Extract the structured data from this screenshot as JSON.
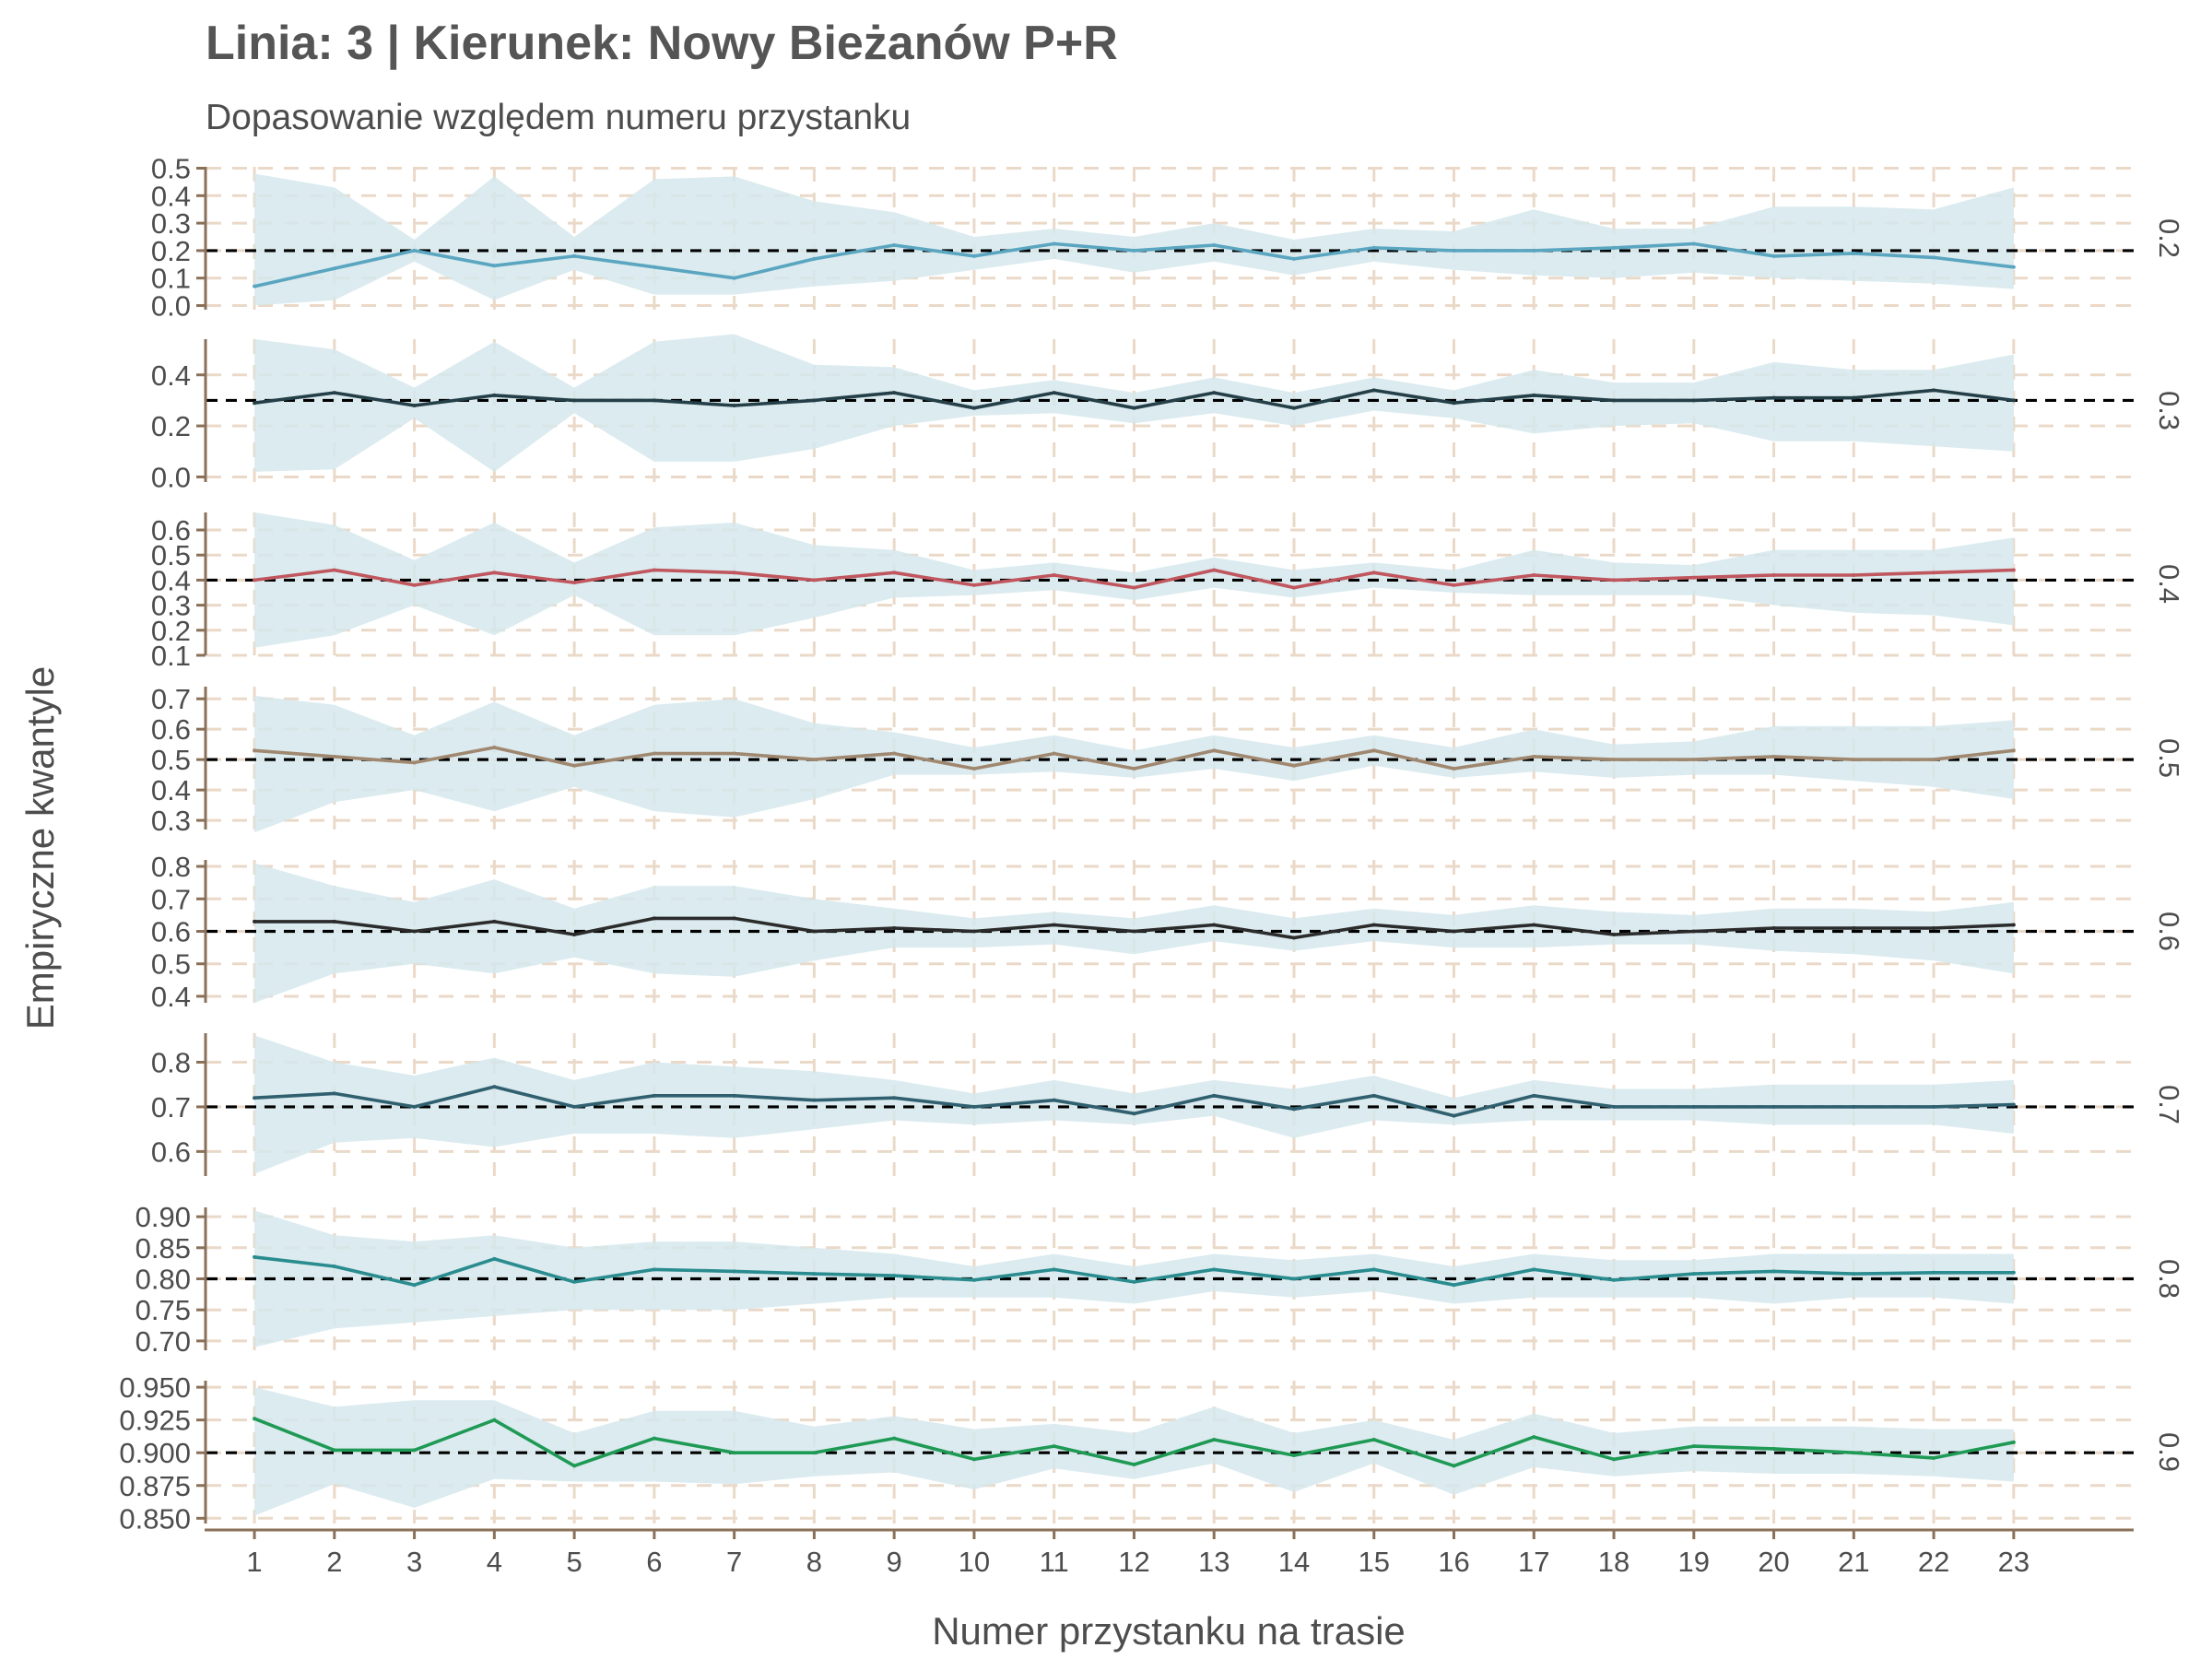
{
  "chart_data": {
    "type": "line",
    "title": "Linia: 3 | Kierunek: Nowy Bieżanów P+R",
    "subtitle": "Dopasowanie względem numeru przystanku",
    "xlabel": "Numer przystanku na trasie",
    "ylabel": "Empiryczne kwantyle",
    "x": [
      1,
      2,
      3,
      4,
      5,
      6,
      7,
      8,
      9,
      10,
      11,
      12,
      13,
      14,
      15,
      16,
      17,
      18,
      19,
      20,
      21,
      22,
      23
    ],
    "xlim": [
      0.4,
      24.5
    ],
    "grid": "dashed",
    "colors": {
      "band": "#d5e8ec",
      "grid": "#ead9c8",
      "axis": "#8a7058",
      "reference": "#000000",
      "text": "#4d4d4d",
      "title": "#555555"
    },
    "panels": [
      {
        "strip": "0.2",
        "ref": 0.2,
        "color": "#5aa5c0",
        "ylim": [
          -0.015,
          0.505
        ],
        "yticks": [
          "0.0",
          "0.1",
          "0.2",
          "0.3",
          "0.4",
          "0.5"
        ],
        "values": [
          0.07,
          0.135,
          0.2,
          0.145,
          0.18,
          0.14,
          0.1,
          0.17,
          0.22,
          0.18,
          0.225,
          0.2,
          0.22,
          0.17,
          0.21,
          0.2,
          0.2,
          0.21,
          0.225,
          0.18,
          0.19,
          0.175,
          0.14
        ],
        "lower": [
          0.0,
          0.02,
          0.16,
          0.02,
          0.13,
          0.04,
          0.04,
          0.07,
          0.09,
          0.13,
          0.17,
          0.12,
          0.16,
          0.11,
          0.16,
          0.13,
          0.11,
          0.1,
          0.12,
          0.1,
          0.09,
          0.08,
          0.06
        ],
        "upper": [
          0.48,
          0.43,
          0.24,
          0.47,
          0.25,
          0.46,
          0.47,
          0.38,
          0.34,
          0.25,
          0.28,
          0.25,
          0.3,
          0.24,
          0.28,
          0.27,
          0.35,
          0.28,
          0.28,
          0.36,
          0.36,
          0.35,
          0.43
        ]
      },
      {
        "strip": "0.3",
        "ref": 0.3,
        "color": "#253f48",
        "ylim": [
          -0.02,
          0.54
        ],
        "yticks": [
          "0.0",
          "0.2",
          "0.4"
        ],
        "values": [
          0.29,
          0.33,
          0.28,
          0.32,
          0.3,
          0.3,
          0.28,
          0.3,
          0.33,
          0.27,
          0.33,
          0.27,
          0.33,
          0.27,
          0.34,
          0.29,
          0.32,
          0.3,
          0.3,
          0.31,
          0.31,
          0.34,
          0.3
        ],
        "lower": [
          0.02,
          0.03,
          0.23,
          0.02,
          0.25,
          0.06,
          0.06,
          0.11,
          0.2,
          0.24,
          0.25,
          0.21,
          0.25,
          0.2,
          0.26,
          0.23,
          0.17,
          0.2,
          0.21,
          0.14,
          0.14,
          0.12,
          0.1
        ],
        "upper": [
          0.54,
          0.5,
          0.35,
          0.53,
          0.35,
          0.53,
          0.56,
          0.44,
          0.43,
          0.34,
          0.38,
          0.33,
          0.39,
          0.33,
          0.39,
          0.34,
          0.42,
          0.37,
          0.37,
          0.45,
          0.42,
          0.42,
          0.48
        ]
      },
      {
        "strip": "0.4",
        "ref": 0.4,
        "color": "#c0565e",
        "ylim": [
          0.1,
          0.67
        ],
        "yticks": [
          "0.1",
          "0.2",
          "0.3",
          "0.4",
          "0.5",
          "0.6"
        ],
        "values": [
          0.4,
          0.44,
          0.38,
          0.43,
          0.39,
          0.44,
          0.43,
          0.4,
          0.43,
          0.38,
          0.42,
          0.37,
          0.44,
          0.37,
          0.43,
          0.38,
          0.42,
          0.4,
          0.41,
          0.42,
          0.42,
          0.43,
          0.44
        ],
        "lower": [
          0.13,
          0.18,
          0.3,
          0.18,
          0.34,
          0.18,
          0.18,
          0.25,
          0.33,
          0.34,
          0.36,
          0.32,
          0.37,
          0.33,
          0.37,
          0.35,
          0.34,
          0.34,
          0.34,
          0.3,
          0.27,
          0.26,
          0.22
        ],
        "upper": [
          0.67,
          0.62,
          0.48,
          0.63,
          0.47,
          0.61,
          0.63,
          0.54,
          0.52,
          0.44,
          0.47,
          0.43,
          0.49,
          0.44,
          0.47,
          0.44,
          0.52,
          0.47,
          0.46,
          0.52,
          0.52,
          0.52,
          0.57
        ]
      },
      {
        "strip": "0.5",
        "ref": 0.5,
        "color": "#a08870",
        "ylim": [
          0.27,
          0.74
        ],
        "yticks": [
          "0.3",
          "0.4",
          "0.5",
          "0.6",
          "0.7"
        ],
        "values": [
          0.53,
          0.51,
          0.49,
          0.54,
          0.48,
          0.52,
          0.52,
          0.5,
          0.52,
          0.47,
          0.52,
          0.47,
          0.53,
          0.48,
          0.53,
          0.47,
          0.51,
          0.5,
          0.5,
          0.51,
          0.5,
          0.5,
          0.53
        ],
        "lower": [
          0.26,
          0.36,
          0.4,
          0.33,
          0.41,
          0.33,
          0.31,
          0.37,
          0.45,
          0.45,
          0.46,
          0.44,
          0.47,
          0.43,
          0.48,
          0.44,
          0.46,
          0.44,
          0.45,
          0.45,
          0.43,
          0.41,
          0.37
        ],
        "upper": [
          0.71,
          0.68,
          0.58,
          0.69,
          0.58,
          0.68,
          0.7,
          0.62,
          0.59,
          0.54,
          0.58,
          0.53,
          0.58,
          0.54,
          0.58,
          0.54,
          0.6,
          0.55,
          0.56,
          0.61,
          0.61,
          0.61,
          0.63
        ]
      },
      {
        "strip": "0.6",
        "ref": 0.6,
        "color": "#2b2b2b",
        "ylim": [
          0.38,
          0.82
        ],
        "yticks": [
          "0.4",
          "0.5",
          "0.6",
          "0.7",
          "0.8"
        ],
        "values": [
          0.63,
          0.63,
          0.6,
          0.63,
          0.59,
          0.64,
          0.64,
          0.6,
          0.61,
          0.6,
          0.62,
          0.6,
          0.62,
          0.58,
          0.62,
          0.6,
          0.62,
          0.59,
          0.6,
          0.61,
          0.61,
          0.61,
          0.62
        ],
        "lower": [
          0.38,
          0.47,
          0.5,
          0.47,
          0.52,
          0.47,
          0.46,
          0.51,
          0.55,
          0.55,
          0.56,
          0.53,
          0.57,
          0.54,
          0.57,
          0.55,
          0.55,
          0.56,
          0.56,
          0.54,
          0.53,
          0.51,
          0.47
        ],
        "upper": [
          0.81,
          0.74,
          0.69,
          0.76,
          0.67,
          0.74,
          0.74,
          0.7,
          0.67,
          0.64,
          0.66,
          0.64,
          0.68,
          0.64,
          0.67,
          0.65,
          0.68,
          0.66,
          0.65,
          0.67,
          0.67,
          0.66,
          0.69
        ]
      },
      {
        "strip": "0.7",
        "ref": 0.7,
        "color": "#30606f",
        "ylim": [
          0.545,
          0.865
        ],
        "yticks": [
          "0.6",
          "0.7",
          "0.8"
        ],
        "values": [
          0.72,
          0.73,
          0.7,
          0.745,
          0.7,
          0.725,
          0.725,
          0.715,
          0.72,
          0.7,
          0.715,
          0.685,
          0.725,
          0.695,
          0.725,
          0.68,
          0.725,
          0.7,
          0.7,
          0.7,
          0.7,
          0.7,
          0.705
        ],
        "lower": [
          0.55,
          0.62,
          0.63,
          0.61,
          0.64,
          0.64,
          0.63,
          0.65,
          0.67,
          0.66,
          0.67,
          0.66,
          0.68,
          0.63,
          0.67,
          0.66,
          0.67,
          0.67,
          0.67,
          0.66,
          0.66,
          0.66,
          0.64
        ],
        "upper": [
          0.86,
          0.8,
          0.77,
          0.81,
          0.76,
          0.8,
          0.79,
          0.78,
          0.76,
          0.73,
          0.76,
          0.73,
          0.76,
          0.74,
          0.77,
          0.72,
          0.76,
          0.74,
          0.74,
          0.75,
          0.75,
          0.75,
          0.76
        ]
      },
      {
        "strip": "0.8",
        "ref": 0.8,
        "color": "#2a8c8f",
        "ylim": [
          0.685,
          0.915
        ],
        "yticks": [
          "0.70",
          "0.75",
          "0.80",
          "0.85",
          "0.90"
        ],
        "values": [
          0.835,
          0.82,
          0.79,
          0.832,
          0.795,
          0.815,
          0.812,
          0.808,
          0.805,
          0.798,
          0.815,
          0.795,
          0.815,
          0.8,
          0.815,
          0.79,
          0.815,
          0.798,
          0.808,
          0.812,
          0.808,
          0.81,
          0.81
        ],
        "lower": [
          0.69,
          0.72,
          0.73,
          0.74,
          0.75,
          0.75,
          0.75,
          0.76,
          0.77,
          0.77,
          0.77,
          0.76,
          0.78,
          0.77,
          0.78,
          0.76,
          0.77,
          0.77,
          0.77,
          0.76,
          0.77,
          0.77,
          0.76
        ],
        "upper": [
          0.91,
          0.87,
          0.86,
          0.87,
          0.85,
          0.86,
          0.86,
          0.85,
          0.84,
          0.82,
          0.84,
          0.82,
          0.84,
          0.83,
          0.84,
          0.82,
          0.84,
          0.83,
          0.83,
          0.84,
          0.84,
          0.84,
          0.84
        ]
      },
      {
        "strip": "0.9",
        "ref": 0.9,
        "color": "#1f9a55",
        "ylim": [
          0.846,
          0.955
        ],
        "yticks": [
          "0.850",
          "0.875",
          "0.900",
          "0.925",
          "0.950"
        ],
        "values": [
          0.926,
          0.902,
          0.902,
          0.925,
          0.89,
          0.911,
          0.9,
          0.9,
          0.911,
          0.895,
          0.905,
          0.891,
          0.91,
          0.898,
          0.91,
          0.89,
          0.912,
          0.895,
          0.905,
          0.903,
          0.9,
          0.896,
          0.908
        ],
        "lower": [
          0.852,
          0.876,
          0.858,
          0.88,
          0.878,
          0.878,
          0.876,
          0.882,
          0.885,
          0.872,
          0.888,
          0.88,
          0.892,
          0.87,
          0.892,
          0.868,
          0.889,
          0.882,
          0.886,
          0.884,
          0.884,
          0.882,
          0.878
        ],
        "upper": [
          0.95,
          0.935,
          0.94,
          0.94,
          0.915,
          0.932,
          0.932,
          0.92,
          0.928,
          0.918,
          0.922,
          0.915,
          0.935,
          0.915,
          0.925,
          0.91,
          0.93,
          0.915,
          0.92,
          0.92,
          0.92,
          0.918,
          0.918
        ]
      }
    ]
  }
}
